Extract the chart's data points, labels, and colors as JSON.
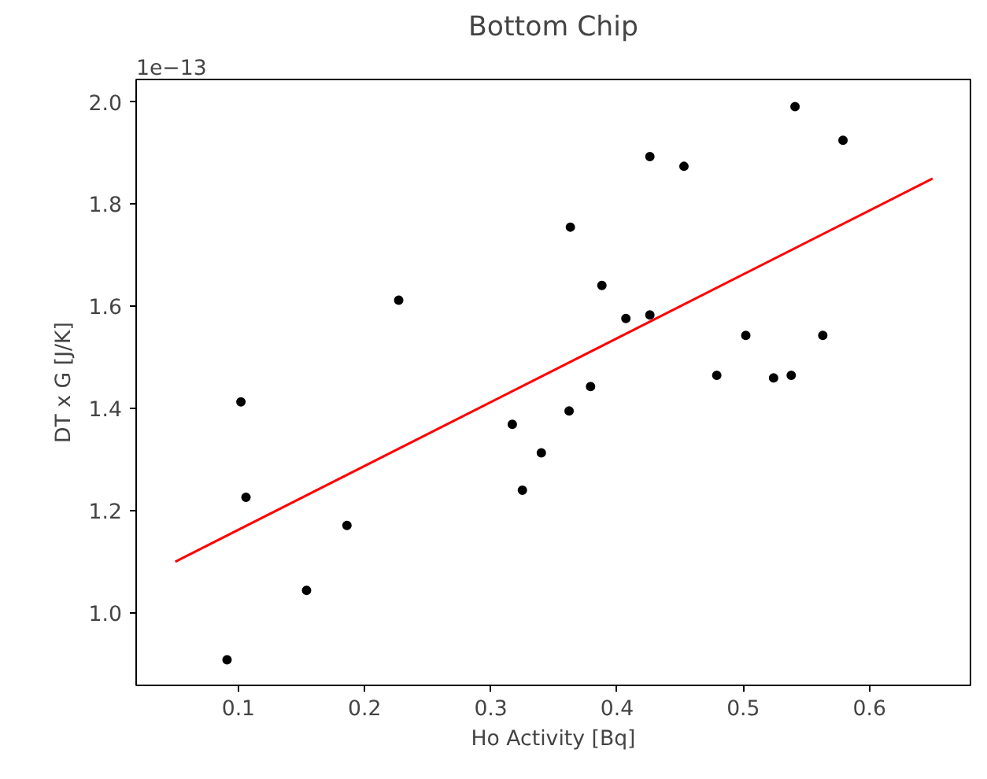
{
  "chart_data": {
    "type": "scatter",
    "title": "Bottom Chip",
    "xlabel": "Ho Activity [Bq]",
    "ylabel": "DT x G [J/K]",
    "annotations": [
      "1e−13"
    ],
    "xlim": [
      0.019,
      0.68
    ],
    "ylim": [
      0.858,
      2.044
    ],
    "xticks": [
      0.1,
      0.2,
      0.3,
      0.4,
      0.5,
      0.6
    ],
    "yticks": [
      {
        "value": 1,
        "label": "1.0"
      },
      1.2,
      1.4,
      1.6,
      1.8,
      {
        "value": 2,
        "label": "2.0"
      }
    ],
    "grid": false,
    "x": [
      0.541,
      0.579,
      0.426,
      0.453,
      0.363,
      0.388,
      0.227,
      0.102,
      0.106,
      0.186,
      0.407,
      0.426,
      0.502,
      0.563,
      0.479,
      0.524,
      0.538,
      0.317,
      0.34,
      0.362,
      0.379,
      0.325,
      0.091,
      0.154
    ],
    "series": [
      {
        "type": "scatter",
        "color": "#000000",
        "marker": "circle",
        "values": [
          1.991,
          1.925,
          1.893,
          1.874,
          1.755,
          1.641,
          1.612,
          1.413,
          1.226,
          1.171,
          1.576,
          1.583,
          1.543,
          1.543,
          1.465,
          1.46,
          1.465,
          1.369,
          1.313,
          1.395,
          1.443,
          1.24,
          0.908,
          1.044
        ]
      },
      {
        "type": "line",
        "color": "#ff0000",
        "x": [
          0.05,
          0.65
        ],
        "values": [
          1.1,
          1.85
        ],
        "marker": "none",
        "line_style": "solid"
      }
    ]
  }
}
